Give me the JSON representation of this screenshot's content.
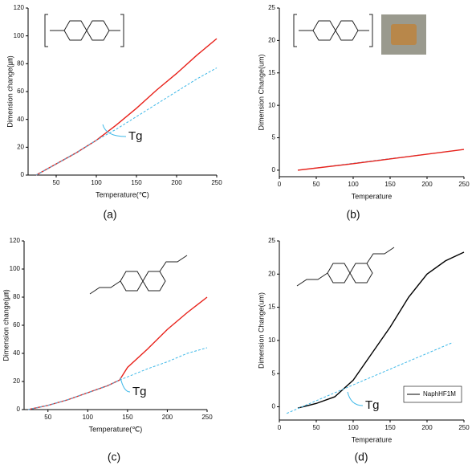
{
  "chart_data": [
    {
      "type": "line",
      "panel_label": "(a)",
      "xlabel": "Temperature(℃)",
      "ylabel": "Dimension change(㎛)",
      "xlim": [
        15,
        250
      ],
      "ylim": [
        0,
        120
      ],
      "xticks": [
        50,
        100,
        150,
        200,
        250
      ],
      "yticks": [
        0,
        20,
        40,
        60,
        80,
        100,
        120
      ],
      "annotations": [
        "Tg"
      ],
      "series": [
        {
          "color": "#e8221b",
          "dash": false,
          "x": [
            25,
            50,
            75,
            100,
            125,
            150,
            175,
            200,
            225,
            250
          ],
          "values": [
            0,
            8,
            16,
            25,
            36,
            48,
            61,
            73,
            86,
            98
          ]
        },
        {
          "color": "#3db8e8",
          "dash": true,
          "x": [
            25,
            50,
            75,
            100,
            125,
            150,
            175,
            200,
            225,
            250
          ],
          "values": [
            0,
            8,
            16,
            25,
            33,
            42,
            51,
            60,
            69,
            77
          ]
        }
      ]
    },
    {
      "type": "line",
      "panel_label": "(b)",
      "xlabel": "Temperature",
      "ylabel": "Dimension Change(um)",
      "xlim": [
        0,
        250
      ],
      "ylim": [
        -1,
        25
      ],
      "xticks": [
        0,
        50,
        100,
        150,
        200,
        250
      ],
      "yticks": [
        0,
        5,
        10,
        15,
        20,
        25
      ],
      "annotations": [],
      "series": [
        {
          "color": "#3db8e8",
          "dash": true,
          "x": [
            25,
            250
          ],
          "values": [
            0,
            3.2
          ]
        },
        {
          "color": "#e8221b",
          "dash": false,
          "x": [
            25,
            100,
            175,
            250
          ],
          "values": [
            0,
            1,
            2.1,
            3.2
          ]
        }
      ]
    },
    {
      "type": "line",
      "panel_label": "(c)",
      "xlabel": "Temperature(℃)",
      "ylabel": "Dimension change(㎛)",
      "xlim": [
        20,
        250
      ],
      "ylim": [
        0,
        120
      ],
      "xticks": [
        50,
        100,
        150,
        200,
        250
      ],
      "yticks": [
        0,
        20,
        40,
        60,
        80,
        100,
        120
      ],
      "annotations": [
        "Tg"
      ],
      "series": [
        {
          "color": "#e8221b",
          "dash": false,
          "x": [
            25,
            50,
            75,
            100,
            125,
            140,
            150,
            175,
            200,
            225,
            250
          ],
          "values": [
            0,
            3,
            7,
            12,
            17,
            21,
            30,
            43,
            57,
            69,
            80
          ]
        },
        {
          "color": "#3db8e8",
          "dash": true,
          "x": [
            25,
            50,
            75,
            100,
            125,
            140,
            175,
            200,
            225,
            250
          ],
          "values": [
            0,
            3,
            7,
            12,
            17,
            21,
            29,
            34,
            40,
            44
          ]
        }
      ]
    },
    {
      "type": "line",
      "panel_label": "(d)",
      "xlabel": "Temperature",
      "ylabel": "Dimension Change(um)",
      "xlim": [
        0,
        250
      ],
      "ylim": [
        -2,
        25
      ],
      "xticks": [
        0,
        50,
        100,
        150,
        200,
        250
      ],
      "yticks": [
        0,
        5,
        10,
        15,
        20,
        25
      ],
      "annotations": [
        "Tg"
      ],
      "legend": "lower right",
      "series": [
        {
          "name": "NaphHF1M",
          "color": "#000000",
          "dash": false,
          "x": [
            25,
            50,
            75,
            100,
            125,
            150,
            175,
            200,
            225,
            250
          ],
          "values": [
            -0.2,
            0.5,
            1.5,
            4,
            8,
            12,
            16.5,
            20,
            22,
            23.3
          ]
        },
        {
          "color": "#3db8e8",
          "dash": true,
          "x": [
            10,
            100,
            235
          ],
          "values": [
            -1,
            3.3,
            9.7
          ]
        }
      ]
    }
  ]
}
